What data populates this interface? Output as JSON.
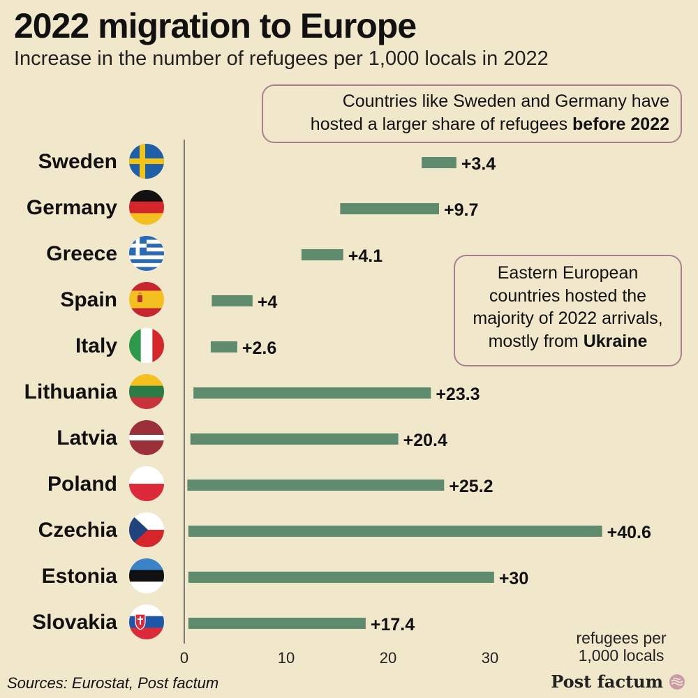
{
  "title": "2022 migration to Europe",
  "subtitle": "Increase in the number of refugees per 1,000 locals in 2022",
  "annotations": {
    "top": {
      "line1": "Countries like Sweden and Germany have",
      "line2_pre": "hosted a larger share of refugees ",
      "line2_bold": "before 2022"
    },
    "east": {
      "text": "Eastern European countries hosted the majority of 2022 arrivals, mostly from ",
      "bold": "Ukraine"
    }
  },
  "unit_label": {
    "line1": "refugees per",
    "line2": "1,000 locals"
  },
  "sources": "Sources: Eurostat, Post factum",
  "brand": "Post factum",
  "colors": {
    "background": "#f1e8cb",
    "bar": "#5e8a6d",
    "axis": "#555555",
    "annotation_border": "#a97e8e"
  },
  "chart_data": {
    "type": "bar",
    "orientation": "horizontal",
    "title": "2022 migration to Europe",
    "subtitle": "Increase in the number of refugees per 1,000 locals in 2022",
    "xlabel": "refugees per 1,000 locals",
    "xlim": [
      0,
      40
    ],
    "xticks": [
      0,
      10,
      20,
      30
    ],
    "rows": [
      {
        "country": "Sweden",
        "start": 23.3,
        "end": 26.7,
        "label": "+3.4",
        "flag": "sweden-flag-icon"
      },
      {
        "country": "Germany",
        "start": 15.3,
        "end": 25.0,
        "label": "+9.7",
        "flag": "germany-flag-icon"
      },
      {
        "country": "Greece",
        "start": 11.5,
        "end": 15.6,
        "label": "+4.1",
        "flag": "greece-flag-icon"
      },
      {
        "country": "Spain",
        "start": 2.7,
        "end": 6.7,
        "label": "+4",
        "flag": "spain-flag-icon"
      },
      {
        "country": "Italy",
        "start": 2.6,
        "end": 5.2,
        "label": "+2.6",
        "flag": "italy-flag-icon"
      },
      {
        "country": "Lithuania",
        "start": 0.9,
        "end": 24.2,
        "label": "+23.3",
        "flag": "lithuania-flag-icon"
      },
      {
        "country": "Latvia",
        "start": 0.6,
        "end": 21.0,
        "label": "+20.4",
        "flag": "latvia-flag-icon"
      },
      {
        "country": "Poland",
        "start": 0.3,
        "end": 25.5,
        "label": "+25.2",
        "flag": "poland-flag-icon"
      },
      {
        "country": "Czechia",
        "start": 0.4,
        "end": 41.0,
        "label": "+40.6",
        "flag": "czechia-flag-icon"
      },
      {
        "country": "Estonia",
        "start": 0.4,
        "end": 30.4,
        "label": "+30",
        "flag": "estonia-flag-icon"
      },
      {
        "country": "Slovakia",
        "start": 0.4,
        "end": 17.8,
        "label": "+17.4",
        "flag": "slovakia-flag-icon"
      }
    ]
  }
}
